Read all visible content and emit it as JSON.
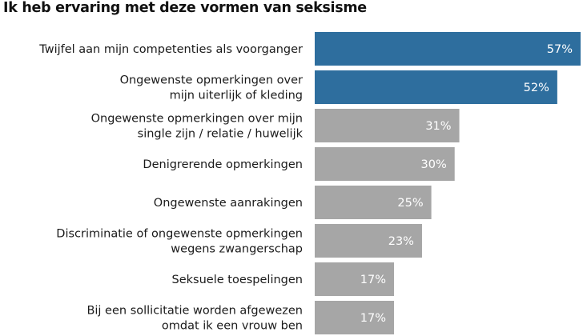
{
  "chart_data": {
    "type": "bar",
    "orientation": "horizontal",
    "title": "Ik heb ervaring met deze vormen van seksisme",
    "categories": [
      [
        "Twijfel aan mijn competenties als voorganger"
      ],
      [
        "Ongewenste opmerkingen over",
        "mijn uiterlijk of kleding"
      ],
      [
        "Ongewenste opmerkingen over mijn",
        "single zijn / relatie / huwelijk"
      ],
      [
        "Denigrerende opmerkingen"
      ],
      [
        "Ongewenste aanrakingen"
      ],
      [
        "Discriminatie of ongewenste opmerkingen",
        "wegens zwangerschap"
      ],
      [
        "Seksuele toespelingen"
      ],
      [
        "Bij een sollicitatie worden afgewezen",
        "omdat ik een vrouw ben"
      ]
    ],
    "values": [
      57,
      52,
      31,
      30,
      25,
      23,
      17,
      17
    ],
    "value_labels": [
      "57%",
      "52%",
      "31%",
      "30%",
      "25%",
      "23%",
      "17%",
      "17%"
    ],
    "xlim": [
      0,
      57
    ],
    "highlight_color": "#2e6e9e",
    "default_color": "#a6a6a6",
    "highlighted": [
      true,
      true,
      false,
      false,
      false,
      false,
      false,
      false
    ],
    "grid": false,
    "legend": "none"
  }
}
